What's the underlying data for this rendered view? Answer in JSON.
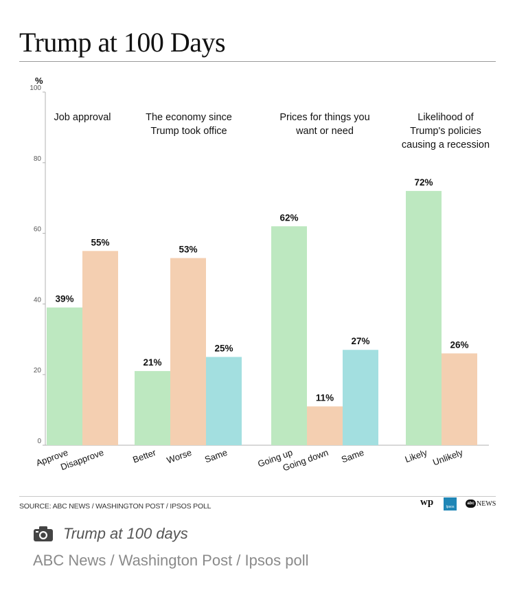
{
  "chart_data": {
    "type": "bar",
    "title": "Trump at 100 Days",
    "ylabel": "%",
    "ylim": [
      0,
      100
    ],
    "yticks": [
      "0",
      "20",
      "40",
      "60",
      "80",
      "100"
    ],
    "grid": false,
    "groups": [
      {
        "title": [
          "Job approval"
        ],
        "bars": [
          {
            "label": "Approve",
            "value": 39,
            "value_label": "39%",
            "color": "#bde8c0"
          },
          {
            "label": "Disapprove",
            "value": 55,
            "value_label": "55%",
            "color": "#f4cfb1"
          }
        ]
      },
      {
        "title": [
          "The economy since",
          "Trump took office"
        ],
        "bars": [
          {
            "label": "Better",
            "value": 21,
            "value_label": "21%",
            "color": "#bde8c0"
          },
          {
            "label": "Worse",
            "value": 53,
            "value_label": "53%",
            "color": "#f4cfb1"
          },
          {
            "label": "Same",
            "value": 25,
            "value_label": "25%",
            "color": "#a3dfe0"
          }
        ]
      },
      {
        "title": [
          "Prices for things you",
          "want or need"
        ],
        "bars": [
          {
            "label": "Going up",
            "value": 62,
            "value_label": "62%",
            "color": "#bde8c0"
          },
          {
            "label": "Going down",
            "value": 11,
            "value_label": "11%",
            "color": "#f4cfb1"
          },
          {
            "label": "Same",
            "value": 27,
            "value_label": "27%",
            "color": "#a3dfe0"
          }
        ]
      },
      {
        "title": [
          "Likelihood of",
          "Trump's policies",
          "causing a recession"
        ],
        "bars": [
          {
            "label": "Likely",
            "value": 72,
            "value_label": "72%",
            "color": "#bde8c0"
          },
          {
            "label": "Unlikely",
            "value": 26,
            "value_label": "26%",
            "color": "#f4cfb1"
          }
        ]
      }
    ]
  },
  "source": "SOURCE: ABC NEWS / WASHINGTON POST / IPSOS POLL",
  "logos": {
    "wp": "wp",
    "ipsos": "Ipsos",
    "abc": "abc",
    "news": "NEWS"
  },
  "caption": {
    "icon": "camera-icon",
    "title": "Trump at 100 days",
    "subtitle": "ABC News / Washington Post / Ipsos poll"
  }
}
